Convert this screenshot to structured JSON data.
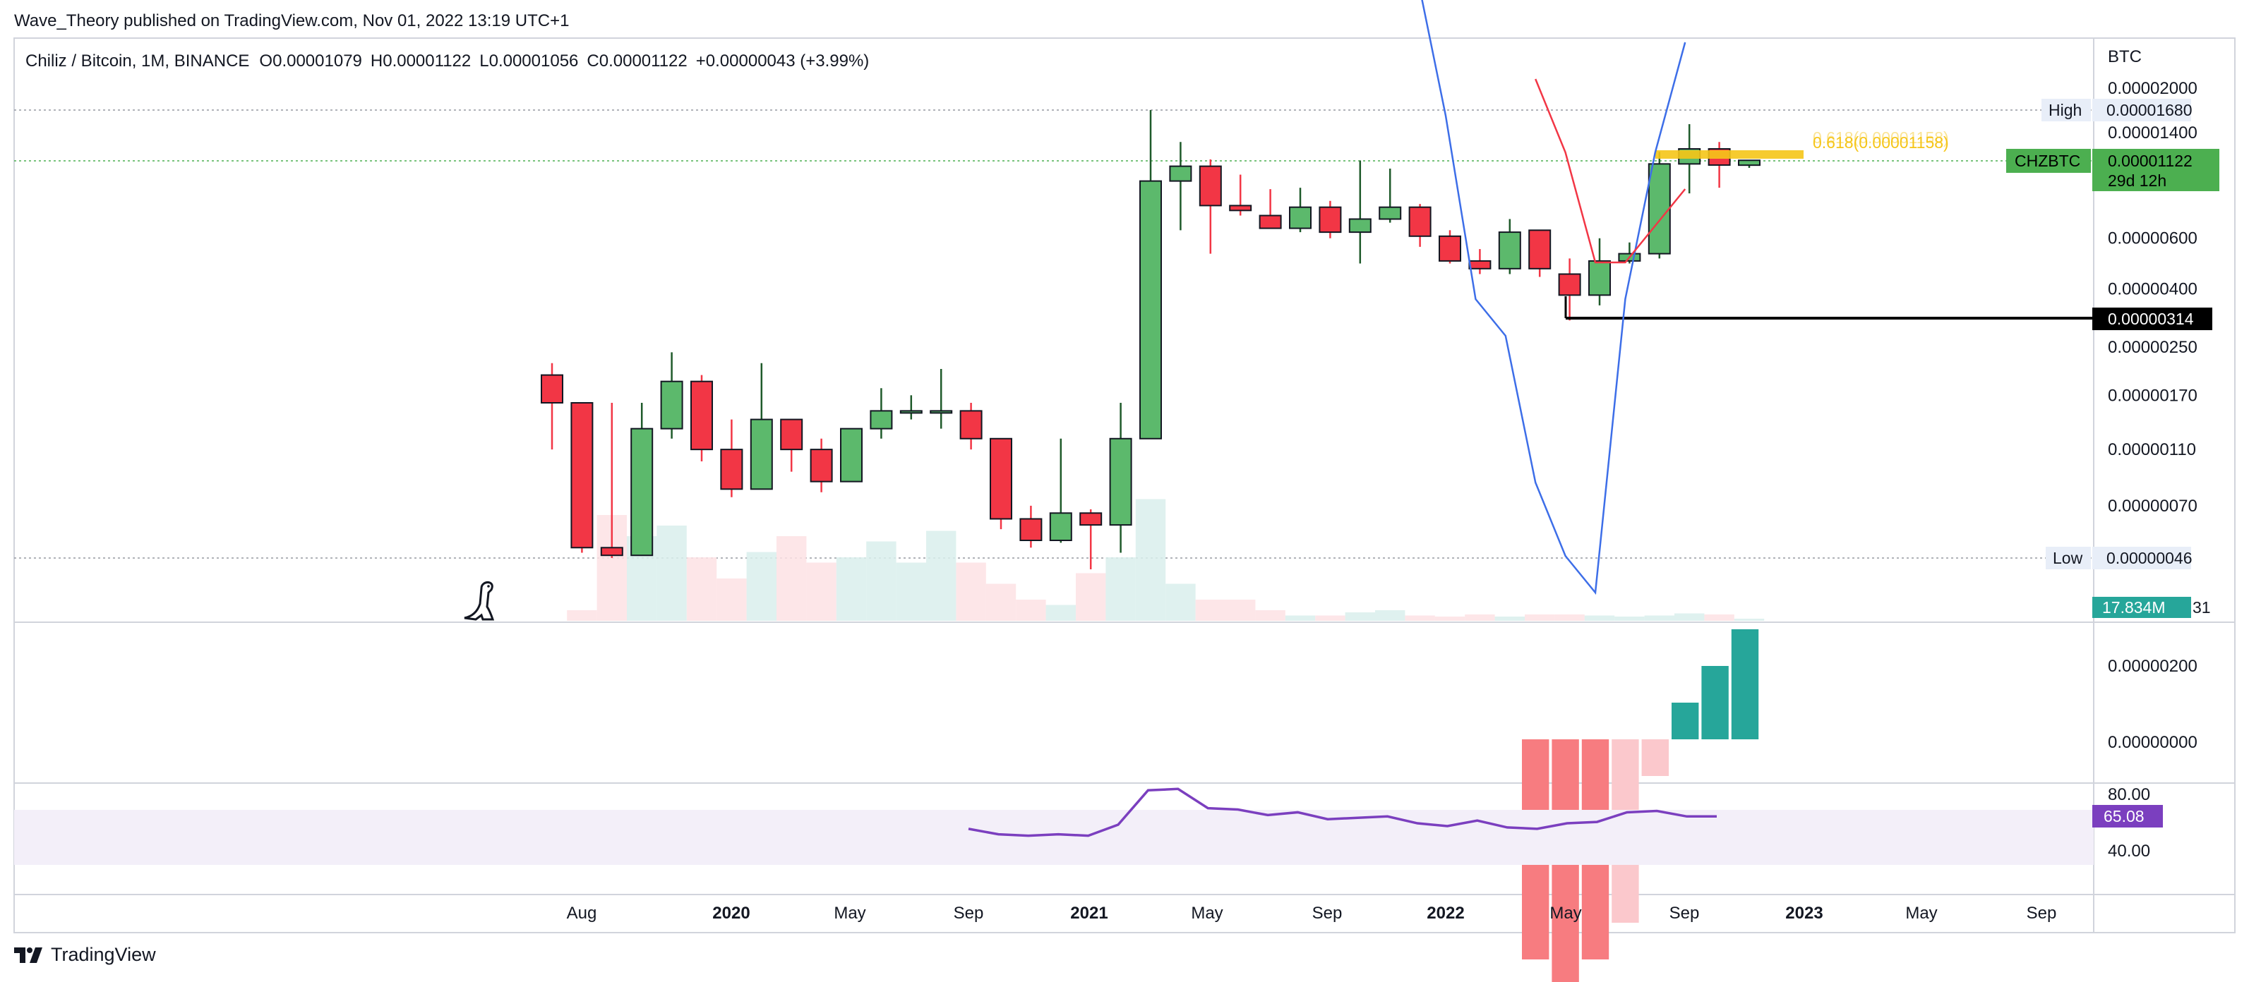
{
  "header": {
    "published": "Wave_Theory published on TradingView.com, Nov 01, 2022 13:19 UTC+1",
    "symbol_line": "Chiliz / Bitcoin, 1M, BINANCE",
    "ohlc": {
      "o": "O0.00001079",
      "h": "H0.00001122",
      "l": "L0.00001056",
      "c": "C0.00001122",
      "change": "+0.00000043 (+3.99%)"
    }
  },
  "footer": {
    "brand": "TradingView"
  },
  "colors": {
    "up": "#5cb96c",
    "down": "#f23645",
    "rsi": "#7b3fbf",
    "macd": "#3d6ee8",
    "signal": "#f23645",
    "hist_up": "#26a69a",
    "fib": "#f5c518",
    "label_green": "#4caf50"
  },
  "chart_data": {
    "type": "candlestick",
    "title": "Chiliz / Bitcoin, 1M, BINANCE",
    "ylabel": "BTC",
    "y_scale": "log",
    "price_ticks": [
      "0.00002000",
      "0.00001400",
      "0.00000600",
      "0.00000400",
      "0.00000250",
      "0.00000170",
      "0.00000110",
      "0.00000070"
    ],
    "x_ticks": [
      "Aug",
      "2020",
      "May",
      "Sep",
      "2021",
      "May",
      "Sep",
      "2022",
      "May",
      "Sep",
      "2023",
      "May",
      "Sep"
    ],
    "candles": [
      {
        "m": "2019-07",
        "o": 2e-06,
        "h": 2.2e-06,
        "l": 1.1e-06,
        "c": 1.6e-06
      },
      {
        "m": "2019-08",
        "o": 1.6e-06,
        "h": 1.6e-06,
        "l": 4.8e-07,
        "c": 5e-07
      },
      {
        "m": "2019-09",
        "o": 5e-07,
        "h": 1.6e-06,
        "l": 4.6e-07,
        "c": 4.7e-07
      },
      {
        "m": "2019-10",
        "o": 4.7e-07,
        "h": 1.6e-06,
        "l": 4.7e-07,
        "c": 1.3e-06
      },
      {
        "m": "2019-11",
        "o": 1.3e-06,
        "h": 2.4e-06,
        "l": 1.2e-06,
        "c": 1.9e-06
      },
      {
        "m": "2019-12",
        "o": 1.9e-06,
        "h": 2e-06,
        "l": 1e-06,
        "c": 1.1e-06
      },
      {
        "m": "2020-01",
        "o": 1.1e-06,
        "h": 1.4e-06,
        "l": 7.5e-07,
        "c": 8e-07
      },
      {
        "m": "2020-02",
        "o": 8e-07,
        "h": 2.2e-06,
        "l": 8e-07,
        "c": 1.4e-06
      },
      {
        "m": "2020-03",
        "o": 1.4e-06,
        "h": 1.4e-06,
        "l": 9.2e-07,
        "c": 1.1e-06
      },
      {
        "m": "2020-04",
        "o": 1.1e-06,
        "h": 1.2e-06,
        "l": 7.8e-07,
        "c": 8.5e-07
      },
      {
        "m": "2020-05",
        "o": 8.5e-07,
        "h": 1.3e-06,
        "l": 8.5e-07,
        "c": 1.3e-06
      },
      {
        "m": "2020-06",
        "o": 1.3e-06,
        "h": 1.8e-06,
        "l": 1.2e-06,
        "c": 1.5e-06
      },
      {
        "m": "2020-07",
        "o": 1.5e-06,
        "h": 1.7e-06,
        "l": 1.4e-06,
        "c": 1.5e-06
      },
      {
        "m": "2020-08",
        "o": 1.5e-06,
        "h": 2.1e-06,
        "l": 1.3e-06,
        "c": 1.5e-06
      },
      {
        "m": "2020-09",
        "o": 1.5e-06,
        "h": 1.6e-06,
        "l": 1.1e-06,
        "c": 1.2e-06
      },
      {
        "m": "2020-10",
        "o": 1.2e-06,
        "h": 1.2e-06,
        "l": 5.8e-07,
        "c": 6.3e-07
      },
      {
        "m": "2020-11",
        "o": 6.3e-07,
        "h": 7e-07,
        "l": 5e-07,
        "c": 5.3e-07
      },
      {
        "m": "2020-12",
        "o": 5.3e-07,
        "h": 1.2e-06,
        "l": 5.2e-07,
        "c": 6.6e-07
      },
      {
        "m": "2021-01",
        "o": 6.6e-07,
        "h": 6.8e-07,
        "l": 4.2e-07,
        "c": 6e-07
      },
      {
        "m": "2021-02",
        "o": 6e-07,
        "h": 1.6e-06,
        "l": 4.8e-07,
        "c": 1.2e-06
      },
      {
        "m": "2021-03",
        "o": 1.2e-06,
        "h": 1.68e-05,
        "l": 1.2e-06,
        "c": 9.5e-06
      },
      {
        "m": "2021-04",
        "o": 9.5e-06,
        "h": 1.3e-05,
        "l": 6.4e-06,
        "c": 1.07e-05
      },
      {
        "m": "2021-05",
        "o": 1.07e-05,
        "h": 1.13e-05,
        "l": 5.3e-06,
        "c": 7.8e-06
      },
      {
        "m": "2021-06",
        "o": 7.8e-06,
        "h": 1e-05,
        "l": 7.2e-06,
        "c": 7.5e-06
      },
      {
        "m": "2021-07",
        "o": 7.2e-06,
        "h": 8.9e-06,
        "l": 6.6e-06,
        "c": 6.5e-06
      },
      {
        "m": "2021-08",
        "o": 6.5e-06,
        "h": 9e-06,
        "l": 6.3e-06,
        "c": 7.7e-06
      },
      {
        "m": "2021-09",
        "o": 7.7e-06,
        "h": 8.1e-06,
        "l": 6e-06,
        "c": 6.3e-06
      },
      {
        "m": "2021-10",
        "o": 6.3e-06,
        "h": 1.12e-05,
        "l": 4.9e-06,
        "c": 7e-06
      },
      {
        "m": "2021-11",
        "o": 7e-06,
        "h": 1.05e-05,
        "l": 6.8e-06,
        "c": 7.7e-06
      },
      {
        "m": "2021-12",
        "o": 7.7e-06,
        "h": 7.9e-06,
        "l": 5.6e-06,
        "c": 6.1e-06
      },
      {
        "m": "2022-01",
        "o": 6.1e-06,
        "h": 6.4e-06,
        "l": 4.9e-06,
        "c": 5e-06
      },
      {
        "m": "2022-02",
        "o": 5e-06,
        "h": 5.5e-06,
        "l": 4.5e-06,
        "c": 4.7e-06
      },
      {
        "m": "2022-03",
        "o": 4.7e-06,
        "h": 7e-06,
        "l": 4.5e-06,
        "c": 6.3e-06
      },
      {
        "m": "2022-04",
        "o": 6.4e-06,
        "h": 6.4e-06,
        "l": 4.4e-06,
        "c": 4.7e-06
      },
      {
        "m": "2022-05",
        "o": 4.5e-06,
        "h": 5.1e-06,
        "l": 3.1e-06,
        "c": 3.8e-06
      },
      {
        "m": "2022-06",
        "o": 3.8e-06,
        "h": 6e-06,
        "l": 3.5e-06,
        "c": 5e-06
      },
      {
        "m": "2022-07",
        "o": 5e-06,
        "h": 5.8e-06,
        "l": 4.9e-06,
        "c": 5.3e-06
      },
      {
        "m": "2022-08",
        "o": 5.3e-06,
        "h": 1.2e-05,
        "l": 5.1e-06,
        "c": 1.09e-05
      },
      {
        "m": "2022-09",
        "o": 1.09e-05,
        "h": 1.5e-05,
        "l": 8.6e-06,
        "c": 1.23e-05
      },
      {
        "m": "2022-10",
        "o": 1.23e-05,
        "h": 1.3e-05,
        "l": 9e-06,
        "c": 1.08e-05
      },
      {
        "m": "2022-11",
        "o": 1.079e-05,
        "h": 1.122e-05,
        "l": 1.056e-05,
        "c": 1.122e-05
      }
    ],
    "high_label": "High",
    "high_value": "0.00001680",
    "low_label": "Low",
    "low_value": "0.00000046",
    "current_label": "CHZBTC",
    "current_value": "0.00001122",
    "countdown": "29d 12h",
    "support_value": "0.00000314",
    "fib_label": "0.618(0.00001158)",
    "fib_faint_label": "0.618(0.00001158)",
    "volume": {
      "label": "17.834M",
      "suffix": "31",
      "values": [
        0,
        0.1,
        1.0,
        0.8,
        0.9,
        0.6,
        0.4,
        0.65,
        0.8,
        0.55,
        0.6,
        0.75,
        0.55,
        0.85,
        0.55,
        0.35,
        0.2,
        0.15,
        0.45,
        0.6,
        1.15,
        0.35,
        0.2,
        0.2,
        0.1,
        0.05,
        0.05,
        0.08,
        0.1,
        0.05,
        0.04,
        0.06,
        0.04,
        0.06,
        0.06,
        0.05,
        0.04,
        0.05,
        0.07,
        0.06,
        0.02
      ]
    },
    "macd": {
      "tick_labels": [
        "0.00000200",
        "0.00000000"
      ],
      "macd_line": [
        [
          42,
          2.6e-06
        ],
        [
          43,
          2.4e-06
        ],
        [
          44,
          2.3e-06
        ],
        [
          45,
          2.2e-06
        ],
        [
          46,
          2.1e-06
        ],
        [
          47,
          1.7e-06
        ],
        [
          48,
          1.2e-06
        ],
        [
          49,
          1.1e-06
        ],
        [
          50,
          7e-07
        ],
        [
          51,
          5e-07
        ],
        [
          52,
          4e-07
        ],
        [
          53,
          1.2e-06
        ],
        [
          54,
          1.6e-06
        ],
        [
          55,
          1.9e-06
        ]
      ],
      "signal_line": [
        [
          50,
          1.8e-06
        ],
        [
          51,
          1.6e-06
        ],
        [
          52,
          1.3e-06
        ],
        [
          53,
          1.3e-06
        ],
        [
          54,
          1.4e-06
        ],
        [
          55,
          1.5e-06
        ]
      ],
      "histogram": [
        [
          50,
          -6e-07
        ],
        [
          51,
          -7e-07
        ],
        [
          52,
          -6e-07
        ],
        [
          53,
          -5e-07
        ],
        [
          54,
          -1e-07
        ],
        [
          55,
          1e-07
        ],
        [
          56,
          2e-07
        ],
        [
          57,
          3e-07
        ]
      ]
    },
    "rsi": {
      "upper": "80.00",
      "lower": "40.00",
      "value": "65.08",
      "values": [
        [
          31,
          57
        ],
        [
          32,
          53
        ],
        [
          33,
          52
        ],
        [
          34,
          53
        ],
        [
          35,
          52
        ],
        [
          36,
          60
        ],
        [
          37,
          85
        ],
        [
          38,
          86
        ],
        [
          39,
          72
        ],
        [
          40,
          71
        ],
        [
          41,
          67
        ],
        [
          42,
          69
        ],
        [
          43,
          64
        ],
        [
          44,
          65
        ],
        [
          45,
          66
        ],
        [
          46,
          61
        ],
        [
          47,
          59
        ],
        [
          48,
          63
        ],
        [
          49,
          58
        ],
        [
          50,
          57
        ],
        [
          51,
          61
        ],
        [
          52,
          62
        ],
        [
          53,
          69
        ],
        [
          54,
          70
        ],
        [
          55,
          66
        ],
        [
          56,
          66
        ]
      ]
    }
  }
}
